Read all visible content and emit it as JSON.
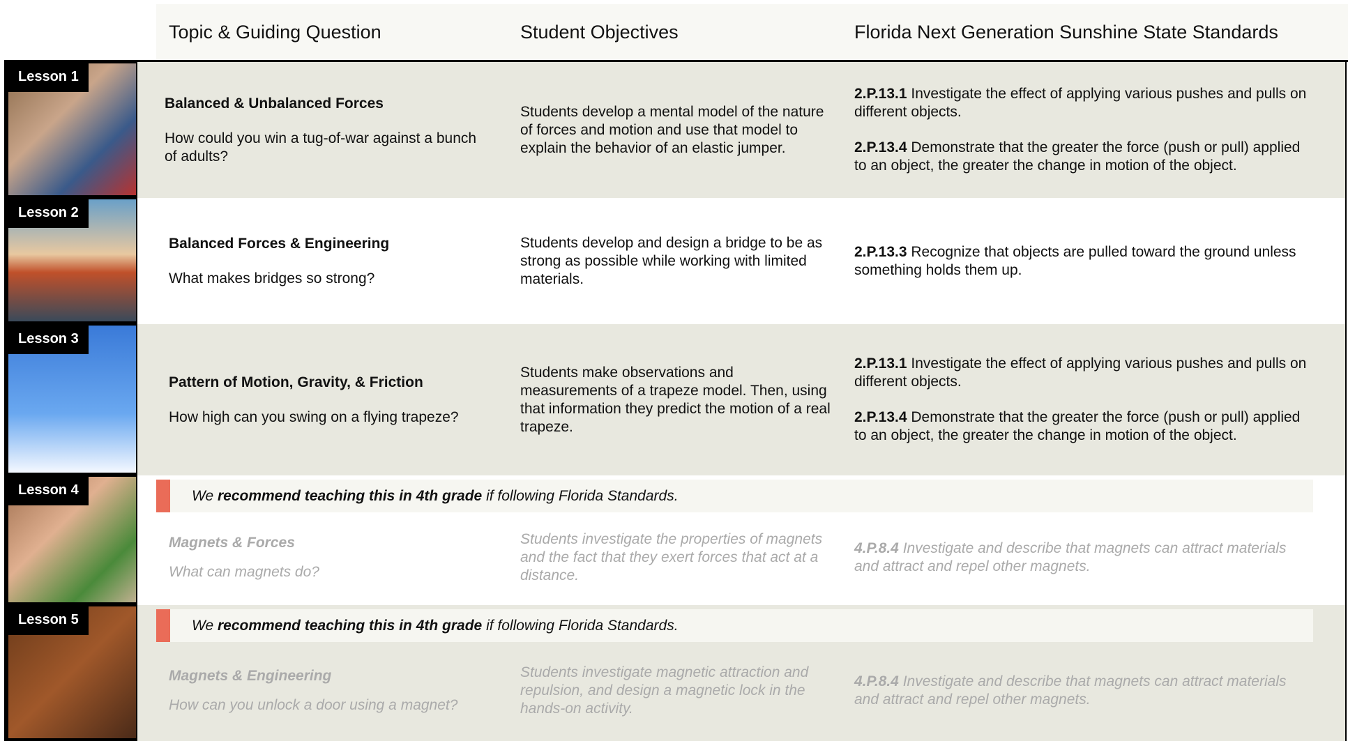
{
  "header": {
    "columns": [
      "Topic & Guiding Question",
      "Student Objectives",
      "Florida Next Generation Sunshine State Standards"
    ]
  },
  "lessons": [
    {
      "label": "Lesson 1",
      "topic": "Balanced & Unbalanced Forces",
      "question": "How could you win a tug-of-war against a bunch of adults?",
      "objectives": "Students develop a mental model of the nature of forces and motion and use that model to explain the behavior of an elastic jumper.",
      "standards": [
        {
          "code": "2.P.13.1",
          "text": "Investigate the effect of applying various pushes and pulls on different objects."
        },
        {
          "code": "2.P.13.4",
          "text": "Demonstrate that the greater the force (push or pull) applied to an object, the greater the change in motion of the object."
        }
      ]
    },
    {
      "label": "Lesson 2",
      "topic": "Balanced Forces & Engineering",
      "question": "What makes bridges so strong?",
      "objectives": "Students develop and design a bridge to be as strong as possible while working with limited materials.",
      "standards": [
        {
          "code": "2.P.13.3",
          "text": "Recognize that objects are pulled toward the ground unless something holds them up."
        }
      ]
    },
    {
      "label": "Lesson 3",
      "topic": "Pattern of Motion, Gravity, & Friction",
      "question": "How high can you swing on a flying trapeze?",
      "objectives": "Students make observations and measurements of a trapeze model. Then, using that information they predict the motion of a real trapeze.",
      "standards": [
        {
          "code": "2.P.13.1",
          "text": "Investigate the effect of applying various pushes and pulls on different objects."
        },
        {
          "code": "2.P.13.4",
          "text": "Demonstrate that the greater the force (push or pull) applied to an object, the greater the change in motion of the object."
        }
      ]
    },
    {
      "label": "Lesson 4",
      "topic": "Magnets & Forces",
      "question": "What can magnets do?",
      "objectives": "Students investigate the properties of magnets and the fact that they exert forces that act at a distance.",
      "standards": [
        {
          "code": "4.P.8.4",
          "text": "Investigate and describe that magnets can attract materials and attract and repel other magnets."
        }
      ],
      "note": {
        "pre": "We",
        "bold": "recommend teaching this in 4th grade",
        "post": "if following Florida Standards."
      }
    },
    {
      "label": "Lesson 5",
      "topic": "Magnets & Engineering",
      "question": "How can you unlock a door using a magnet?",
      "objectives": "Students investigate magnetic attraction and repulsion, and design a magnetic lock in the hands-on activity.",
      "standards": [
        {
          "code": "4.P.8.4",
          "text": "Investigate and describe that magnets can attract materials and attract and repel other magnets."
        }
      ],
      "note": {
        "pre": "We",
        "bold": "recommend teaching this in 4th grade",
        "post": "if following Florida Standards."
      }
    }
  ]
}
